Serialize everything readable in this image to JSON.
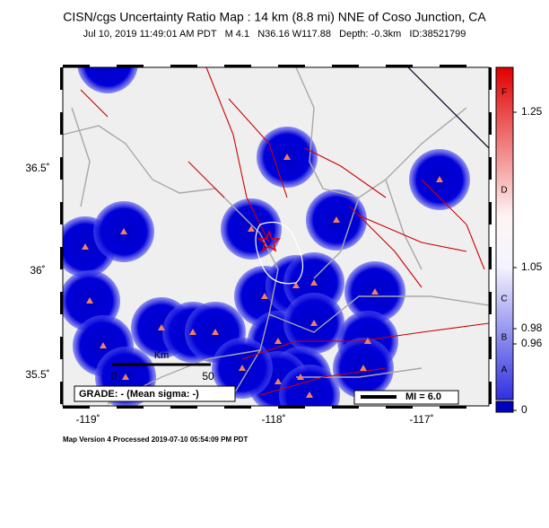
{
  "header": {
    "title": "CISN/cgs Uncertainty Ratio Map : 14 km (8.8 mi) NNE of Coso Junction, CA",
    "subtitle": "Jul 10, 2019 11:49:01 AM PDT   M 4.1   N36.16 W117.88   Depth: -0.3km   ID:38521799"
  },
  "map": {
    "lat_labels": [
      "36.5˚",
      "36˚",
      "35.5˚"
    ],
    "lon_labels": [
      "-119˚",
      "-118˚",
      "-117˚"
    ],
    "scale_bar": {
      "start": "0",
      "end": "50",
      "unit": "Km"
    },
    "grade": "GRADE: - (Mean sigma: -)",
    "legend": "MI = 6.0"
  },
  "colorbar": {
    "values": [
      "1.25",
      "1.05",
      "0.98",
      "0.96",
      "0"
    ],
    "grades": [
      "F",
      "D",
      "C",
      "B",
      "A"
    ]
  },
  "footer": "Map Version 4 Processed 2019-07-10 05:54:09 PM PDT"
}
